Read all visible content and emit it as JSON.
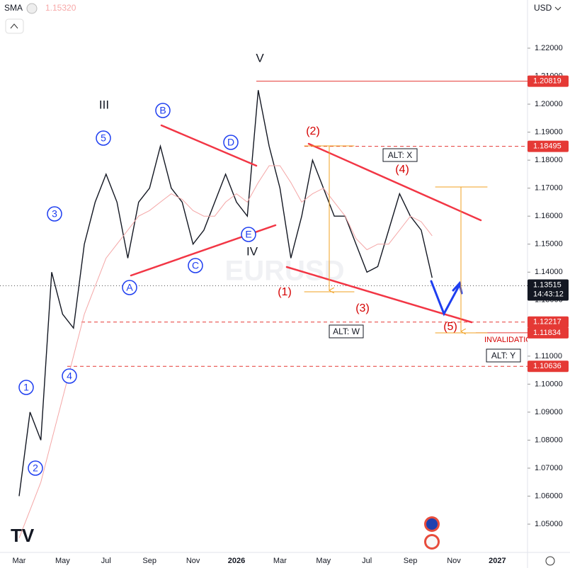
{
  "chart_data": {
    "type": "line",
    "indicator": "SMA",
    "indicator_value": "1.15320",
    "currency": "USD",
    "watermark": "EURUSD",
    "categories": [
      "Mar",
      null,
      null,
      null,
      "May",
      null,
      null,
      null,
      "Jul",
      null,
      null,
      null,
      "Sep",
      null,
      null,
      null,
      "Nov",
      null,
      null,
      null,
      "2026",
      null,
      null,
      null,
      "Mar",
      null,
      null,
      null,
      "May",
      null,
      null,
      null,
      "Jul",
      null,
      null,
      null,
      "Sep",
      null,
      null,
      null,
      "Nov",
      null,
      null,
      null,
      "2027"
    ],
    "series": [
      {
        "name": "EURUSD",
        "color": "#131722",
        "values": [
          1.06,
          1.09,
          1.08,
          1.14,
          1.125,
          1.12,
          1.15,
          1.165,
          1.175,
          1.165,
          1.145,
          1.165,
          1.17,
          1.185,
          1.17,
          1.165,
          1.15,
          1.155,
          1.165,
          1.175,
          1.165,
          1.16,
          1.205,
          1.185,
          1.17,
          1.145,
          1.16,
          1.18,
          1.17,
          1.16,
          1.16,
          1.15,
          1.14,
          1.142,
          1.155,
          1.168,
          1.16,
          1.155,
          1.138,
          null,
          null,
          null,
          null,
          null,
          null
        ]
      },
      {
        "name": "SMA",
        "color": "#f4a6a6",
        "values": [
          1.045,
          1.055,
          1.065,
          1.08,
          1.095,
          1.11,
          1.125,
          1.135,
          1.145,
          1.15,
          1.155,
          1.16,
          1.162,
          1.165,
          1.168,
          1.166,
          1.162,
          1.16,
          1.16,
          1.165,
          1.168,
          1.165,
          1.172,
          1.178,
          1.178,
          1.172,
          1.165,
          1.168,
          1.17,
          1.165,
          1.16,
          1.152,
          1.148,
          1.15,
          1.15,
          1.155,
          1.16,
          1.158,
          1.153,
          null,
          null,
          null,
          null,
          null,
          null
        ]
      }
    ],
    "ylim": [
      1.0399,
      1.2372
    ],
    "yticks": [
      {
        "value": 1.05,
        "label": "1.05000"
      },
      {
        "value": 1.06,
        "label": "1.06000"
      },
      {
        "value": 1.07,
        "label": "1.07000"
      },
      {
        "value": 1.08,
        "label": "1.08000"
      },
      {
        "value": 1.09,
        "label": "1.09000"
      },
      {
        "value": 1.1,
        "label": "1.10000"
      },
      {
        "value": 1.11,
        "label": "1.11000"
      },
      {
        "value": 1.12,
        "label": "1.12000"
      },
      {
        "value": 1.13,
        "label": "1.13000"
      },
      {
        "value": 1.14,
        "label": "1.14000"
      },
      {
        "value": 1.15,
        "label": "1.15000"
      },
      {
        "value": 1.16,
        "label": "1.16000"
      },
      {
        "value": 1.17,
        "label": "1.17000"
      },
      {
        "value": 1.18,
        "label": "1.18000"
      },
      {
        "value": 1.19,
        "label": "1.19000"
      },
      {
        "value": 1.2,
        "label": "1.20000"
      },
      {
        "value": 1.21,
        "label": "1.21000"
      },
      {
        "value": 1.22,
        "label": "1.22000"
      }
    ],
    "levels": {
      "values": [
        1.20819,
        1.18495,
        1.12217,
        1.11834,
        1.10636
      ]
    },
    "last_price": 1.13515,
    "countdown": "14:43:12",
    "circled_labels": [
      "1",
      "2",
      "3",
      "4",
      "5",
      "A",
      "B",
      "C",
      "D",
      "E"
    ],
    "roman_labels": [
      "V",
      "III",
      "IV"
    ],
    "red_labels": [
      "(1)",
      "(2)",
      "(3)",
      "(4)",
      "(5)"
    ],
    "boxed_labels": [
      "ALT: X",
      "ALT: W",
      "ALT: Y"
    ],
    "invalidation": "INVALIDATION"
  }
}
